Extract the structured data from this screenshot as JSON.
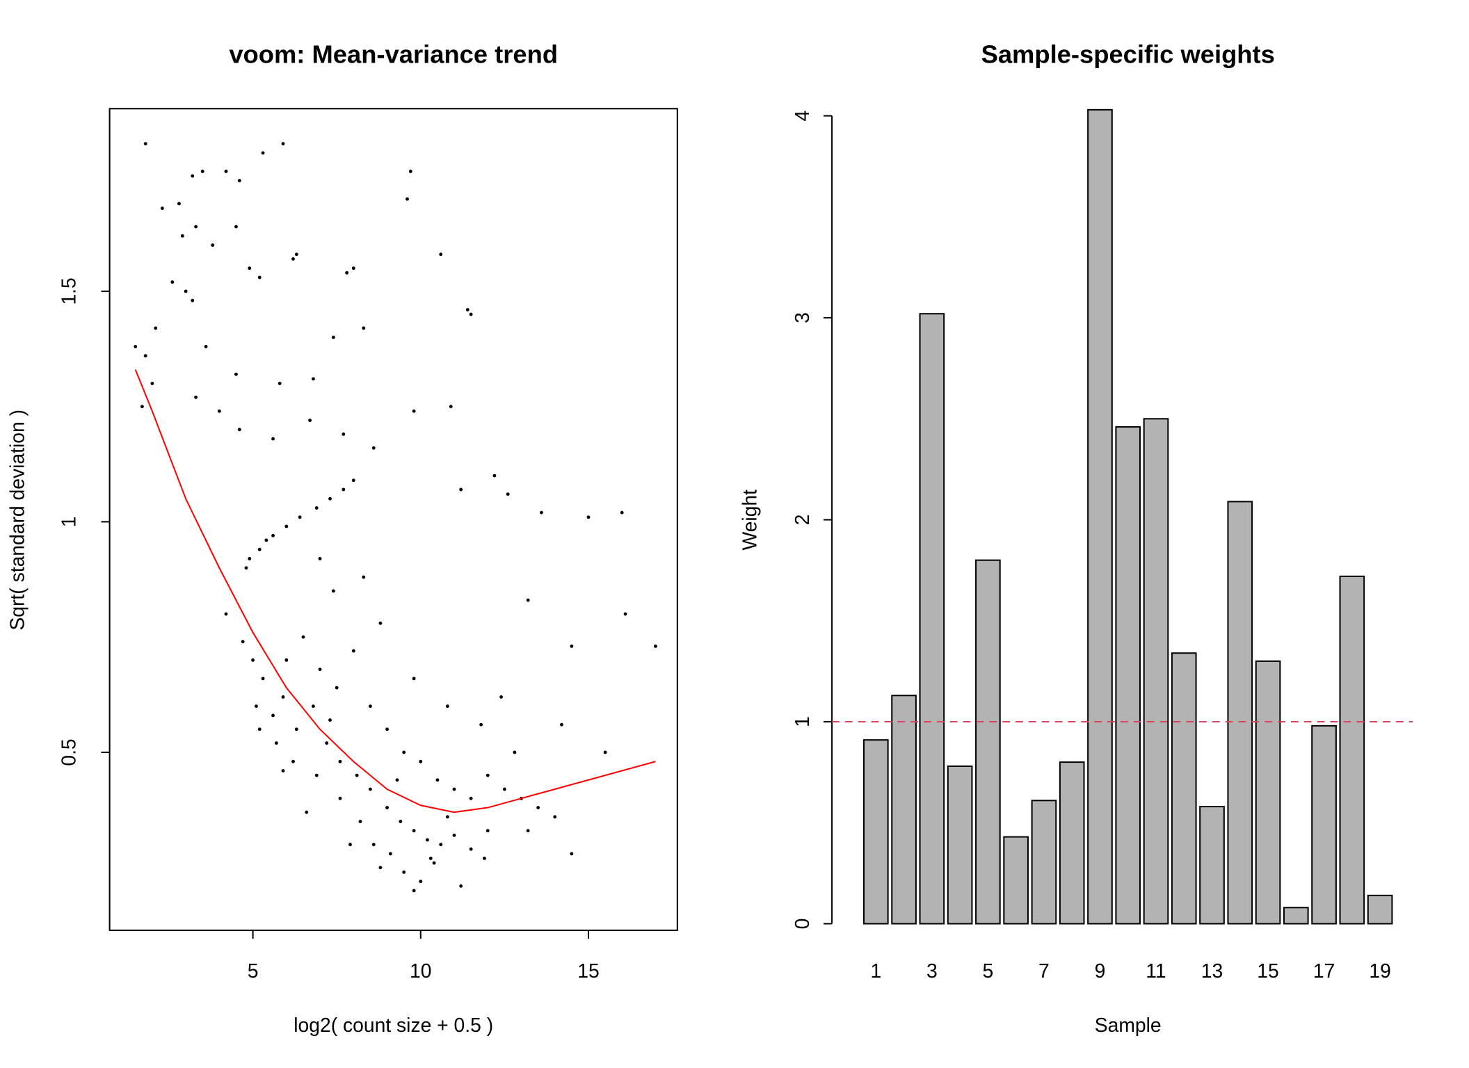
{
  "chart_data": [
    {
      "type": "scatter",
      "title": "voom: Mean-variance trend",
      "xlabel": "log2( count size + 0.5 )",
      "ylabel": "Sqrt( standard deviation )",
      "x": [
        1.8,
        2.3,
        2.8,
        3.2,
        3.5,
        4.2,
        4.6,
        5.3,
        5.9,
        9.6,
        9.7,
        2.9,
        3.3,
        3.8,
        4.5,
        6.2,
        6.3,
        10.6,
        3.0,
        3.2,
        2.6,
        4.9,
        5.2,
        7.8,
        8.0,
        11.5,
        11.4,
        2.1,
        3.6,
        4.5,
        5.8,
        6.8,
        7.4,
        8.3,
        1.5,
        1.8,
        2.0,
        1.7,
        3.3,
        4.0,
        4.6,
        5.6,
        6.7,
        7.7,
        8.6,
        9.8,
        10.9,
        12.2,
        11.2,
        12.6,
        13.6,
        15.0,
        16.0,
        16.1,
        17.0,
        14.5,
        13.2,
        4.9,
        5.2,
        5.6,
        6.0,
        6.4,
        6.9,
        7.3,
        7.7,
        8.0,
        4.8,
        5.4,
        4.2,
        4.7,
        5.0,
        5.3,
        5.1,
        5.6,
        5.9,
        6.3,
        6.8,
        7.2,
        7.6,
        8.1,
        8.5,
        9.0,
        9.4,
        9.8,
        10.2,
        10.6,
        11.0,
        11.5,
        12.0,
        9.1,
        9.5,
        10.0,
        10.4,
        8.6,
        8.2,
        7.6,
        6.9,
        6.2,
        5.7,
        5.2,
        6.0,
        6.5,
        7.0,
        7.5,
        8.0,
        8.5,
        9.0,
        9.5,
        10.0,
        10.5,
        11.0,
        11.5,
        12.0,
        12.5,
        13.0,
        13.5,
        14.0,
        14.5,
        12.8,
        11.8,
        10.8,
        9.8,
        8.8,
        8.3,
        7.4,
        7.0,
        10.3,
        11.9,
        13.2,
        6.6,
        7.9,
        8.8,
        9.8,
        11.2,
        15.5,
        14.2,
        12.4,
        10.8,
        9.3,
        7.3,
        5.9
      ],
      "values": [
        1.82,
        1.68,
        1.69,
        1.75,
        1.76,
        1.76,
        1.74,
        1.8,
        1.82,
        1.7,
        1.76,
        1.62,
        1.64,
        1.6,
        1.64,
        1.57,
        1.58,
        1.58,
        1.5,
        1.48,
        1.52,
        1.55,
        1.53,
        1.54,
        1.55,
        1.45,
        1.46,
        1.42,
        1.38,
        1.32,
        1.3,
        1.31,
        1.4,
        1.42,
        1.38,
        1.36,
        1.3,
        1.25,
        1.27,
        1.24,
        1.2,
        1.18,
        1.22,
        1.19,
        1.16,
        1.24,
        1.25,
        1.1,
        1.07,
        1.06,
        1.02,
        1.01,
        1.02,
        0.8,
        0.73,
        0.73,
        0.83,
        0.92,
        0.94,
        0.97,
        0.99,
        1.01,
        1.03,
        1.05,
        1.07,
        1.09,
        0.9,
        0.96,
        0.8,
        0.74,
        0.7,
        0.66,
        0.6,
        0.58,
        0.62,
        0.55,
        0.6,
        0.52,
        0.48,
        0.45,
        0.42,
        0.38,
        0.35,
        0.33,
        0.31,
        0.3,
        0.32,
        0.29,
        0.33,
        0.28,
        0.24,
        0.22,
        0.26,
        0.3,
        0.35,
        0.4,
        0.45,
        0.48,
        0.52,
        0.55,
        0.7,
        0.75,
        0.68,
        0.64,
        0.72,
        0.6,
        0.55,
        0.5,
        0.48,
        0.44,
        0.42,
        0.4,
        0.45,
        0.42,
        0.4,
        0.38,
        0.36,
        0.28,
        0.5,
        0.56,
        0.6,
        0.66,
        0.78,
        0.88,
        0.85,
        0.92,
        0.27,
        0.27,
        0.33,
        0.37,
        0.3,
        0.25,
        0.2,
        0.21,
        0.5,
        0.56,
        0.62,
        0.36,
        0.44,
        0.57,
        0.46
      ],
      "color": "#000000",
      "trend": {
        "x": [
          1.5,
          2,
          3,
          4,
          5,
          6,
          7,
          8,
          9,
          10,
          11,
          12,
          13,
          14,
          15,
          16,
          17
        ],
        "values": [
          1.33,
          1.24,
          1.05,
          0.9,
          0.76,
          0.64,
          0.55,
          0.48,
          0.42,
          0.385,
          0.37,
          0.38,
          0.4,
          0.42,
          0.44,
          0.46,
          0.48
        ],
        "color": "#ff0000"
      },
      "xlim": [
        0.73,
        17.65
      ],
      "ylim": [
        0.114,
        1.896
      ],
      "xticks": [
        5,
        10,
        15
      ],
      "yticks": [
        0.5,
        1.0,
        1.5
      ]
    },
    {
      "type": "bar",
      "title": "Sample-specific weights",
      "xlabel": "Sample",
      "ylabel": "Weight",
      "categories": [
        "1",
        null,
        "3",
        null,
        "5",
        null,
        "7",
        null,
        "9",
        null,
        "11",
        null,
        "13",
        null,
        "15",
        null,
        "17",
        null,
        "19"
      ],
      "values": [
        0.91,
        1.13,
        3.02,
        0.78,
        1.8,
        0.43,
        0.61,
        0.8,
        4.03,
        2.46,
        2.5,
        1.34,
        0.58,
        2.09,
        1.3,
        0.08,
        0.98,
        1.72,
        0.14
      ],
      "color": "#b3b3b3",
      "ylim": [
        0,
        4.04
      ],
      "yticks": [
        0,
        1,
        2,
        3,
        4
      ],
      "reference_line": {
        "value": 1,
        "color": "#d9445a",
        "style": "dashed"
      }
    }
  ]
}
